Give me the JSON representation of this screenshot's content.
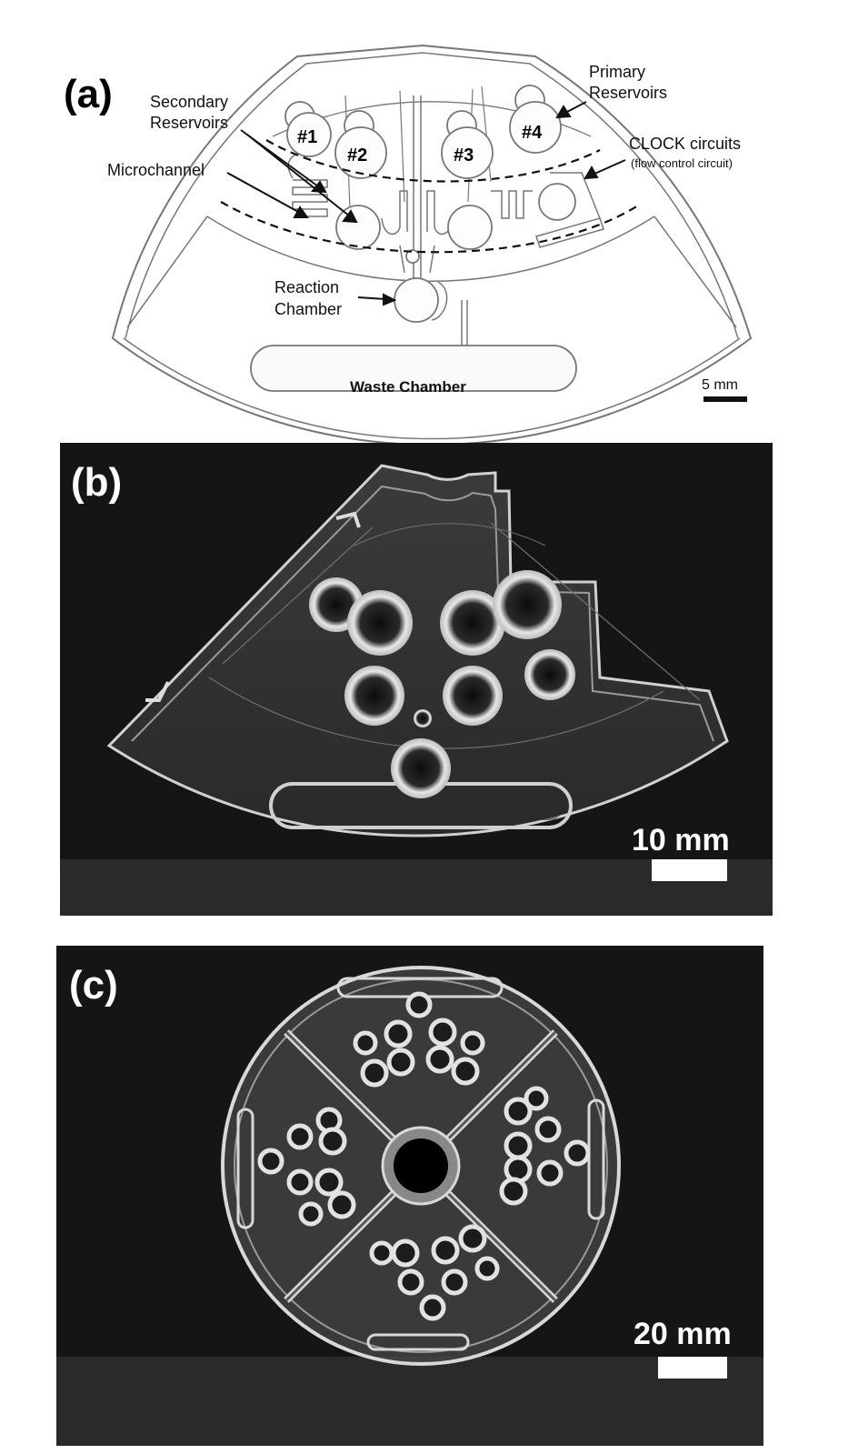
{
  "panel_a": {
    "label": "(a)",
    "reservoir_labels": [
      "#1",
      "#2",
      "#3",
      "#4"
    ],
    "annotations": {
      "secondary_reservoirs": [
        "Secondary",
        "Reservoirs"
      ],
      "primary_reservoirs": [
        "Primary",
        "Reservoirs"
      ],
      "microchannel": "Microchannel",
      "clock_circuits": "CLOCK circuits",
      "clock_subtitle": "(flow control circuit)",
      "reaction_chamber": [
        "Reaction",
        "Chamber"
      ],
      "waste_chamber": "Waste Chamber"
    },
    "scale_bar": "5 mm"
  },
  "panel_b": {
    "label": "(b)",
    "scale_bar": "10 mm"
  },
  "panel_c": {
    "label": "(c)",
    "scale_bar": "20 mm"
  },
  "colors": {
    "photo_bg": "#151515",
    "photo_floor": "#2a2a2a",
    "plastic_edge": "#d8d8d8",
    "diagram_line": "#6a6a6a"
  }
}
